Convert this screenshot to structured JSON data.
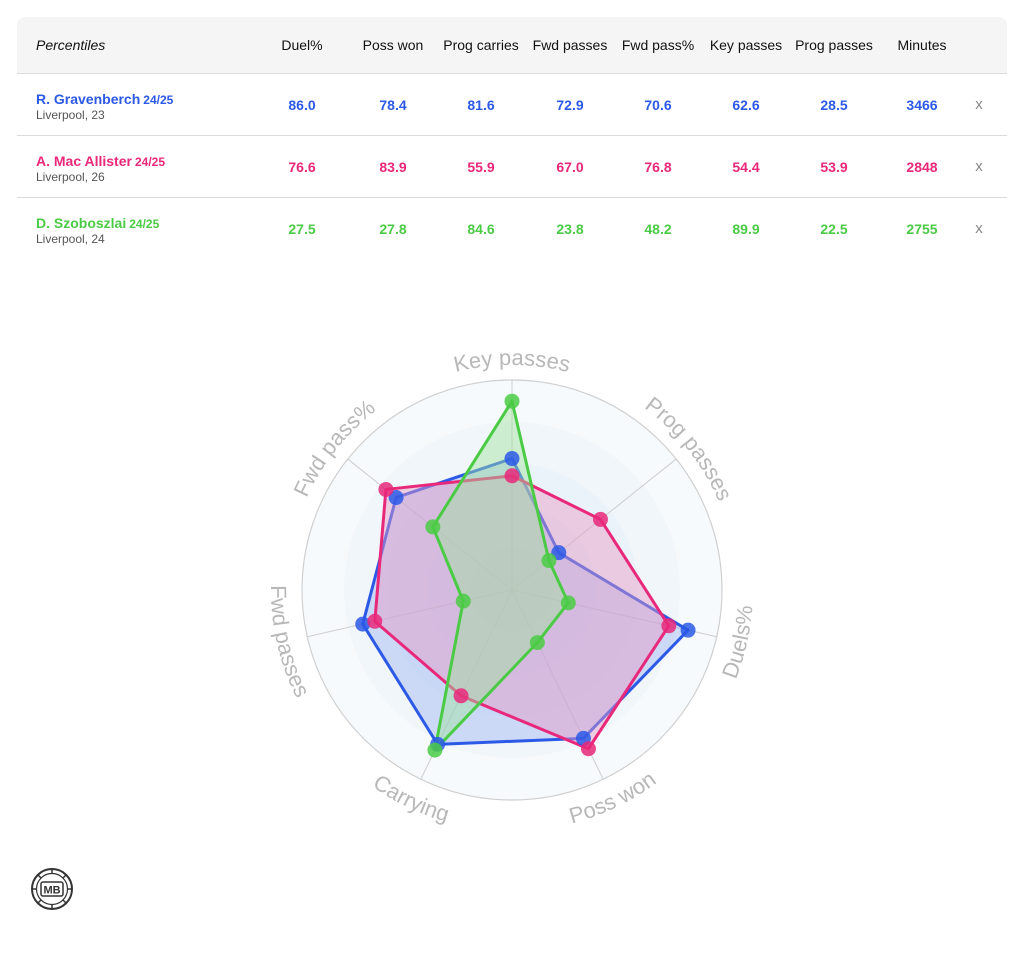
{
  "table": {
    "header": "Percentiles",
    "columns": [
      "Duel%",
      "Poss won",
      "Prog carries",
      "Fwd passes",
      "Fwd pass%",
      "Key passes",
      "Prog passes",
      "Minutes"
    ],
    "remove_label": "x",
    "players": [
      {
        "name": "R. Gravenberch",
        "season": "24/25",
        "sub": "Liverpool, 23",
        "color": "#2c59e6",
        "values": [
          "86.0",
          "78.4",
          "81.6",
          "72.9",
          "70.6",
          "62.6",
          "28.5",
          "3466"
        ]
      },
      {
        "name": "A. Mac Allister",
        "season": "24/25",
        "sub": "Liverpool, 26",
        "color": "#e8287a",
        "values": [
          "76.6",
          "83.9",
          "55.9",
          "67.0",
          "76.8",
          "54.4",
          "53.9",
          "2848"
        ]
      },
      {
        "name": "D. Szoboszlai",
        "season": "24/25",
        "sub": "Liverpool, 24",
        "color": "#4bcb45",
        "values": [
          "27.5",
          "27.8",
          "84.6",
          "23.8",
          "48.2",
          "89.9",
          "22.5",
          "2755"
        ]
      }
    ]
  },
  "chart_data": {
    "type": "radar",
    "axes": [
      "Key passes",
      "Prog passes",
      "Duels%",
      "Poss won",
      "Carrying",
      "Fwd passes",
      "Fwd pass%"
    ],
    "range": [
      0,
      100
    ],
    "series": [
      {
        "name": "R. Gravenberch",
        "color": "#2c59e6",
        "fill": "#9db5f2",
        "values": [
          62.6,
          28.5,
          86.0,
          78.4,
          81.6,
          72.9,
          70.6
        ]
      },
      {
        "name": "A. Mac Allister",
        "color": "#e8287a",
        "fill": "#e79ac4",
        "values": [
          54.4,
          53.9,
          76.6,
          83.9,
          55.9,
          67.0,
          76.8
        ]
      },
      {
        "name": "D. Szoboszlai",
        "color": "#4bcb45",
        "fill": "#9fe29b",
        "values": [
          89.9,
          22.5,
          27.5,
          27.8,
          84.6,
          23.8,
          48.2
        ]
      }
    ]
  },
  "logo": {
    "text": "MB"
  }
}
